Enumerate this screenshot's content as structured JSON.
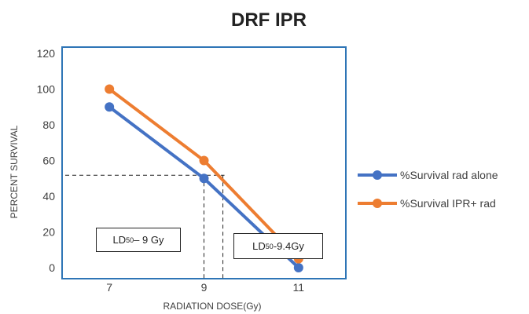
{
  "chart_data": {
    "type": "line",
    "title": "DRF IPR",
    "xlabel": "RADIATION DOSE(Gy)",
    "ylabel": "PERCENT SURVIVAL",
    "x": [
      7,
      9,
      11
    ],
    "xlim": [
      6,
      12
    ],
    "ylim": [
      0,
      120
    ],
    "yticks": [
      0,
      20,
      40,
      60,
      80,
      100,
      120
    ],
    "xticks": [
      7,
      9,
      11
    ],
    "grid": false,
    "legend_position": "right",
    "series": [
      {
        "name": "%Survival rad alone",
        "color": "#4472C4",
        "x": [
          7,
          9,
          11
        ],
        "values": [
          90,
          50,
          0
        ]
      },
      {
        "name": "%Survival IPR+ rad",
        "color": "#ED7D31",
        "x": [
          7,
          9,
          11
        ],
        "values": [
          100,
          60,
          5
        ]
      }
    ],
    "reference_lines": [
      {
        "x": 9,
        "y": 50
      },
      {
        "x": 9.4,
        "y": 50
      }
    ],
    "annotations": [
      {
        "prefix": "LD",
        "sub": "50",
        "suffix": " – 9 Gy"
      },
      {
        "prefix": "LD",
        "sub": "50",
        "suffix": "-9.4Gy"
      }
    ]
  }
}
